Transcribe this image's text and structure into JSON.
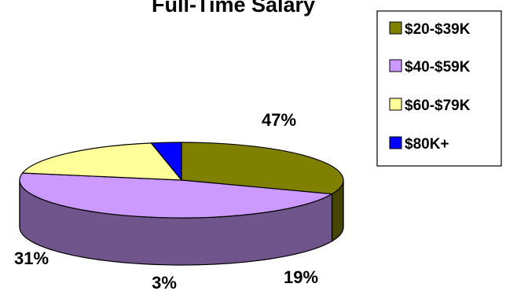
{
  "chart_data": {
    "type": "pie",
    "title": "Full-Time Salary",
    "slices": [
      {
        "label": "$20-$39K",
        "value": 31,
        "value_label": "31%",
        "color": "#808000"
      },
      {
        "label": "$40-$59K",
        "value": 47,
        "value_label": "47%",
        "color": "#CC99FF"
      },
      {
        "label": "$60-$79K",
        "value": 19,
        "value_label": "19%",
        "color": "#FFFF99"
      },
      {
        "label": "$80K+",
        "value": 3,
        "value_label": "3%",
        "color": "#0000FF"
      }
    ],
    "legend_position": "top-right",
    "three_d": true
  }
}
